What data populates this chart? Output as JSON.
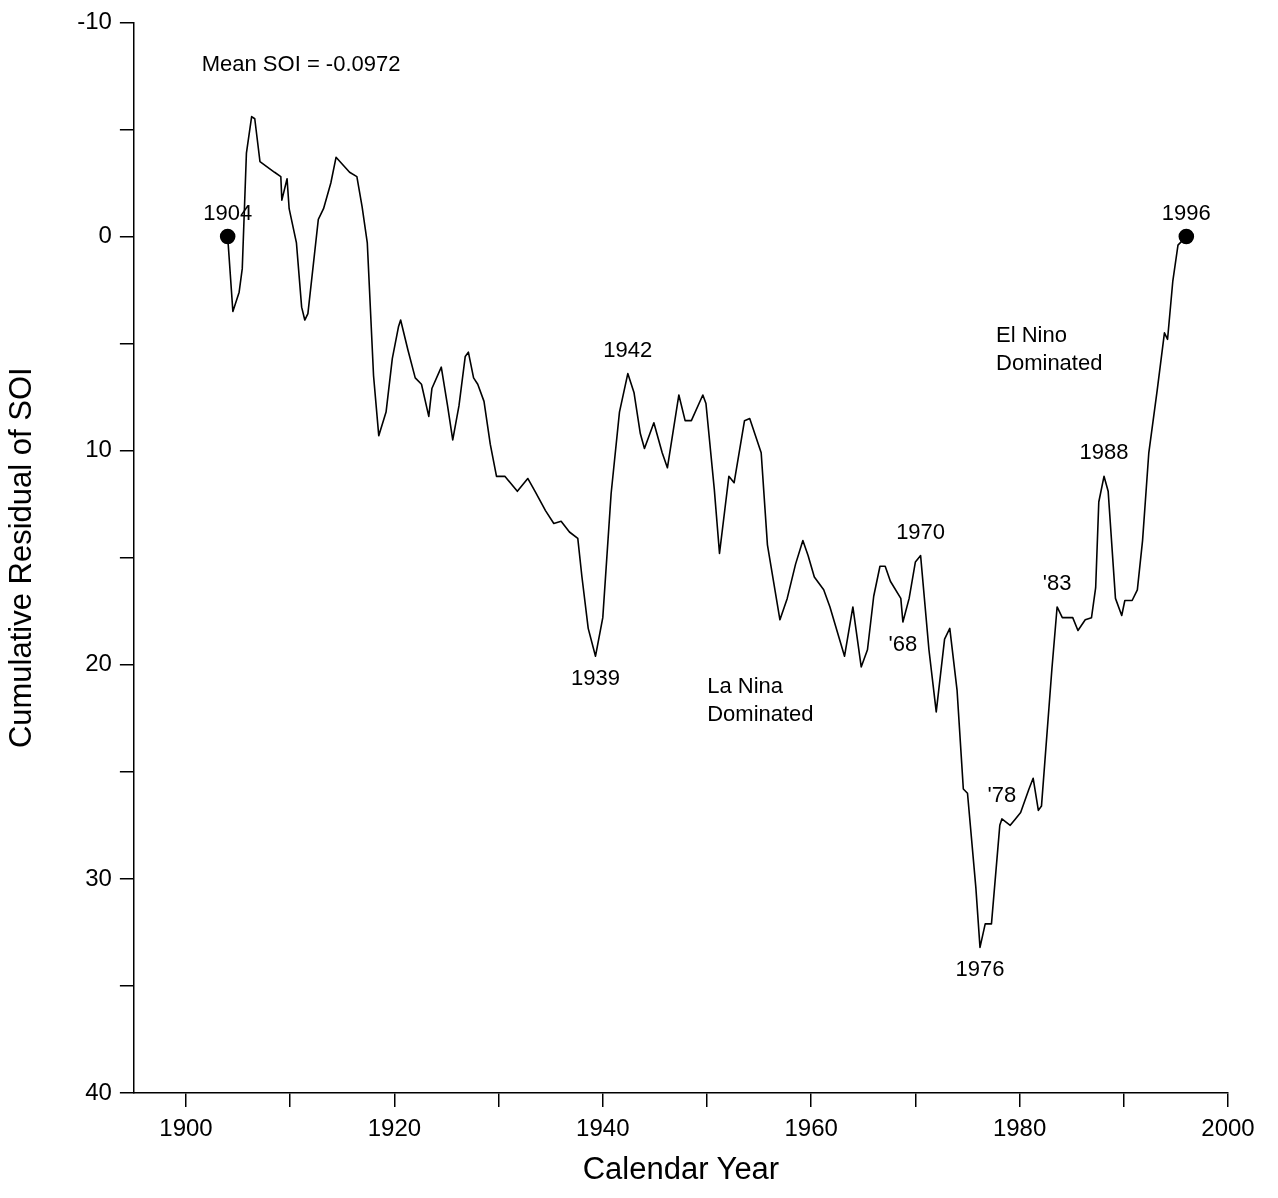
{
  "chart_data": {
    "type": "line",
    "xlabel": "Calendar Year",
    "ylabel": "Cumulative Residual of SOI",
    "xlim": [
      1895,
      2000
    ],
    "ylim": [
      40,
      -10
    ],
    "xticks": [
      1900,
      {
        "value": 1910,
        "label": null
      },
      1920,
      {
        "value": 1930,
        "label": null
      },
      1940,
      {
        "value": 1950,
        "label": null
      },
      1960,
      {
        "value": 1970,
        "label": null
      },
      1980,
      {
        "value": 1990,
        "label": null
      },
      2000
    ],
    "yticks": [
      -10,
      {
        "value": -5,
        "label": null
      },
      0,
      {
        "value": 5,
        "label": null
      },
      10,
      {
        "value": 15,
        "label": null
      },
      20,
      {
        "value": 25,
        "label": null
      },
      30,
      {
        "value": 35,
        "label": null
      },
      40
    ],
    "legend": false,
    "grid": false,
    "series": [
      {
        "type": "line",
        "color": "#000000",
        "marker": "none",
        "x": [
          1904.0,
          1904.5,
          1905.1,
          1905.4,
          1905.8,
          1906.3,
          1906.6,
          1907.1,
          1908.5,
          1909.1,
          1909.2,
          1909.7,
          1909.9,
          1910.6,
          1911.1,
          1911.4,
          1911.7,
          1912.7,
          1913.2,
          1913.9,
          1914.4,
          1915.7,
          1916.4,
          1916.9,
          1917.4,
          1918.0,
          1918.5,
          1919.2,
          1919.8,
          1920.4,
          1920.6,
          1921.3,
          1922.0,
          1922.6,
          1923.3,
          1923.6,
          1924.5,
          1925.1,
          1925.6,
          1926.2,
          1926.8,
          1927.1,
          1927.6,
          1928.0,
          1928.6,
          1929.2,
          1929.8,
          1930.6,
          1931.8,
          1932.8,
          1933.5,
          1934.5,
          1935.3,
          1936.0,
          1936.8,
          1937.6,
          1938.0,
          1938.6,
          1939.3,
          1940.0,
          1940.8,
          1941.6,
          1942.4,
          1943.0,
          1943.6,
          1944.0,
          1944.9,
          1945.7,
          1946.2,
          1947.3,
          1947.9,
          1948.5,
          1949.6,
          1949.9,
          1950.7,
          1951.2,
          1952.1,
          1952.6,
          1953.6,
          1954.1,
          1955.2,
          1955.8,
          1957.0,
          1957.7,
          1958.5,
          1959.2,
          1959.7,
          1960.3,
          1961.2,
          1961.8,
          1963.2,
          1964.0,
          1964.8,
          1965.4,
          1966.0,
          1966.6,
          1967.1,
          1967.6,
          1968.6,
          1968.8,
          1969.4,
          1970.0,
          1970.5,
          1971.3,
          1972.0,
          1972.8,
          1973.3,
          1974.0,
          1974.6,
          1975.0,
          1975.8,
          1976.2,
          1976.7,
          1977.3,
          1978.1,
          1978.3,
          1979.1,
          1979.6,
          1980.1,
          1980.9,
          1981.3,
          1981.8,
          1982.1,
          1983.1,
          1983.6,
          1984.1,
          1985.1,
          1985.6,
          1986.3,
          1986.9,
          1987.3,
          1987.6,
          1988.1,
          1988.5,
          1989.2,
          1989.8,
          1990.1,
          1990.8,
          1991.3,
          1991.8,
          1992.4,
          1993.2,
          1993.9,
          1994.2,
          1994.7,
          1995.2,
          1996.0
        ],
        "values": [
          0,
          3.5,
          2.6,
          1.5,
          -3.9,
          -5.6,
          -5.5,
          -3.5,
          -3.0,
          -2.8,
          -1.7,
          -2.7,
          -1.3,
          0.3,
          3.3,
          3.9,
          3.6,
          -0.8,
          -1.3,
          -2.5,
          -3.7,
          -3.0,
          -2.8,
          -1.4,
          0.3,
          6.5,
          9.3,
          8.2,
          5.7,
          4.2,
          3.9,
          5.3,
          6.6,
          6.9,
          8.4,
          7.1,
          6.1,
          7.9,
          9.5,
          7.9,
          5.6,
          5.4,
          6.6,
          6.9,
          7.7,
          9.7,
          11.2,
          11.2,
          11.9,
          11.3,
          11.9,
          12.8,
          13.4,
          13.3,
          13.8,
          14.1,
          15.9,
          18.3,
          19.6,
          17.8,
          12.0,
          8.2,
          6.4,
          7.3,
          9.2,
          9.9,
          8.7,
          10.1,
          10.8,
          7.4,
          8.6,
          8.6,
          7.4,
          7.8,
          11.8,
          14.8,
          11.2,
          11.5,
          8.6,
          8.5,
          10.1,
          14.4,
          17.9,
          16.9,
          15.3,
          14.2,
          14.9,
          15.9,
          16.5,
          17.3,
          19.6,
          17.3,
          20.1,
          19.3,
          16.8,
          15.4,
          15.4,
          16.1,
          16.9,
          18.0,
          16.9,
          15.2,
          14.9,
          19.3,
          22.2,
          18.8,
          18.3,
          21.2,
          25.8,
          26.0,
          30.4,
          33.2,
          32.1,
          32.1,
          27.5,
          27.2,
          27.5,
          27.2,
          26.9,
          25.8,
          25.3,
          26.8,
          26.6,
          20.2,
          17.3,
          17.8,
          17.8,
          18.4,
          17.9,
          17.8,
          16.4,
          12.4,
          11.2,
          11.9,
          16.9,
          17.7,
          17.0,
          17.0,
          16.5,
          14.2,
          10.1,
          7.2,
          4.5,
          4.8,
          2.1,
          0.4,
          0
        ]
      },
      {
        "type": "scatter",
        "color": "#000000",
        "marker": "circle",
        "x": [
          1904,
          1996
        ],
        "values": [
          0,
          0
        ]
      }
    ],
    "annotations": [
      "Mean SOI = -0.0972",
      {
        "text": "1904",
        "x": 1904,
        "y": 0
      },
      {
        "text": "1942",
        "x": 1942.4,
        "y": 6.4
      },
      {
        "text": "1939",
        "x": 1939.3,
        "y": 19.6
      },
      "La Nina\nDominated",
      {
        "text": "1970",
        "x": 1970.5,
        "y": 14.9
      },
      {
        "text": "'68",
        "x": 1968.8,
        "y": 18.0
      },
      {
        "text": "1976",
        "x": 1976.2,
        "y": 33.2
      },
      {
        "text": "'78",
        "x": 1978.3,
        "y": 27.2
      },
      {
        "text": "'83",
        "x": 1983.6,
        "y": 17.3
      },
      {
        "text": "1988",
        "x": 1988.1,
        "y": 11.2
      },
      "El Nino\nDominated",
      {
        "text": "1996",
        "x": 1996,
        "y": 0
      }
    ]
  }
}
